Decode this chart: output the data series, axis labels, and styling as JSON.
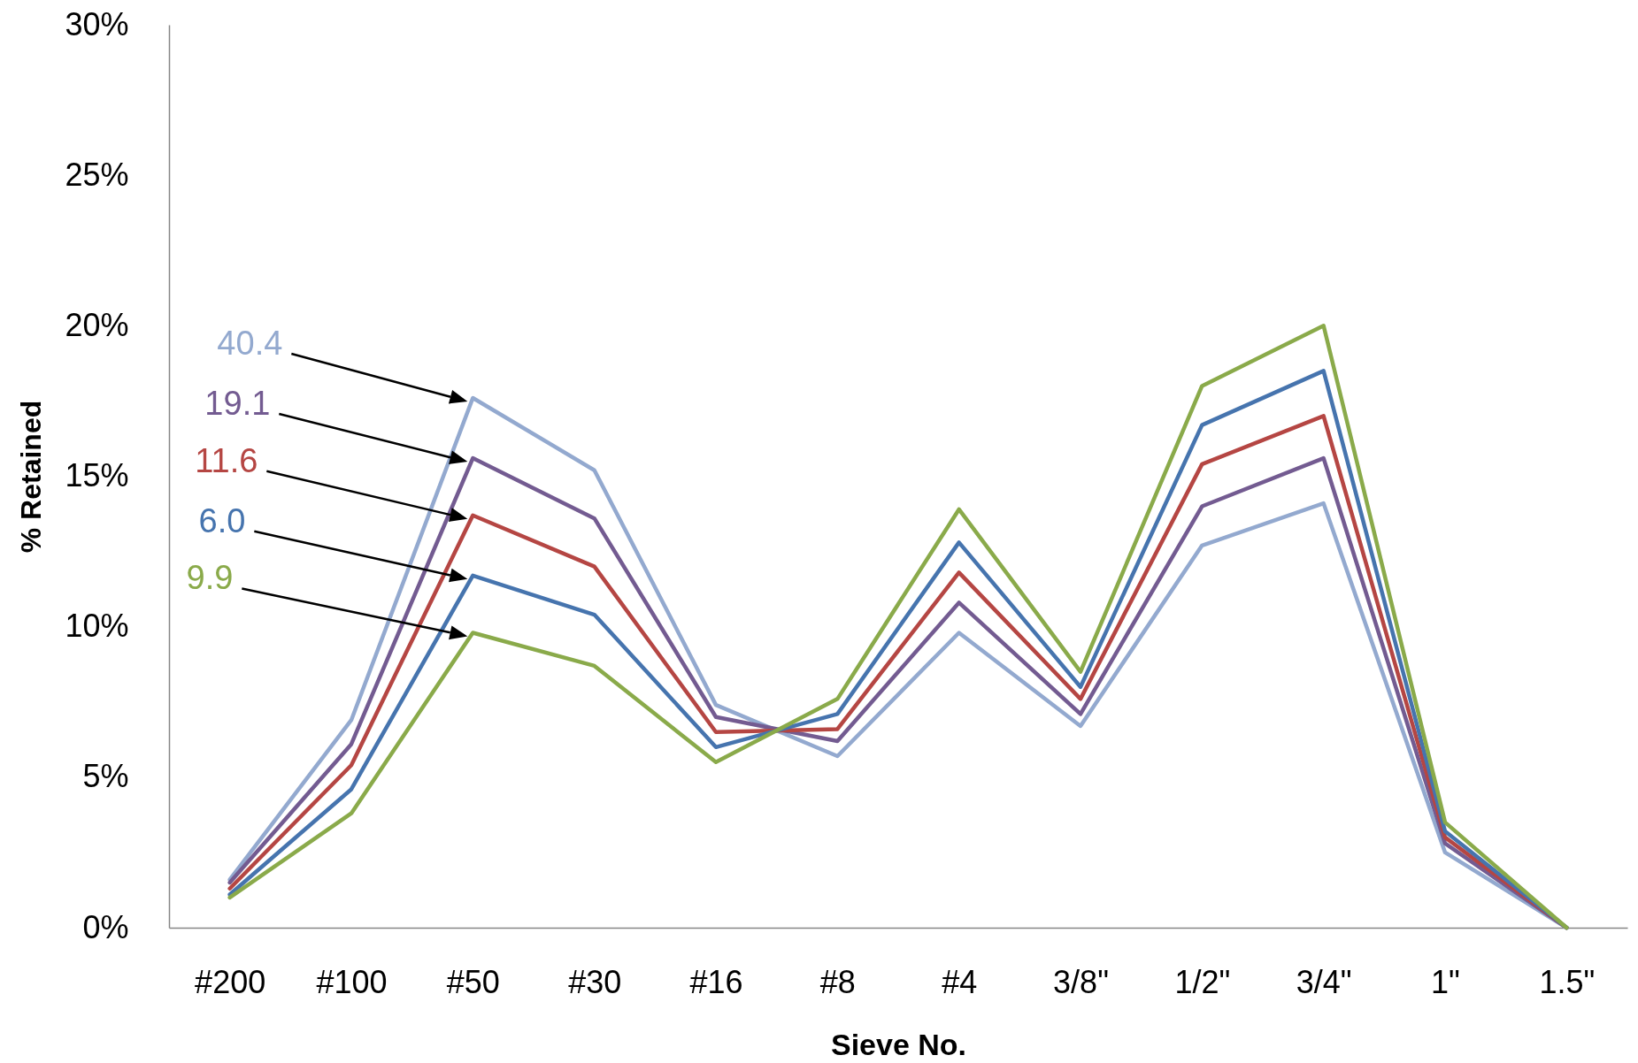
{
  "chart_data": {
    "type": "line",
    "xlabel": "Sieve No.",
    "ylabel": "% Retained",
    "categories": [
      "#200",
      "#100",
      "#50",
      "#30",
      "#16",
      "#8",
      "#4",
      "3/8\"",
      "1/2\"",
      "3/4\"",
      "1\"",
      "1.5\""
    ],
    "ylim": [
      0,
      30
    ],
    "yticks": [
      {
        "value": 0,
        "label": "0%"
      },
      {
        "value": 5,
        "label": "5%"
      },
      {
        "value": 10,
        "label": "10%"
      },
      {
        "value": 15,
        "label": "15%"
      },
      {
        "value": 20,
        "label": "20%"
      },
      {
        "value": 25,
        "label": "25%"
      },
      {
        "value": 30,
        "label": "30%"
      }
    ],
    "grid": false,
    "legend": false,
    "marker": "none",
    "line_style": "solid",
    "series": [
      {
        "name": "40.4",
        "color": "#93a9cf",
        "values": [
          1.6,
          6.9,
          17.6,
          15.2,
          7.4,
          5.7,
          9.8,
          6.7,
          12.7,
          14.1,
          2.5,
          0
        ]
      },
      {
        "name": "19.1",
        "color": "#735b91",
        "values": [
          1.5,
          6.1,
          15.6,
          13.6,
          7.0,
          6.2,
          10.8,
          7.1,
          14.0,
          15.6,
          2.8,
          0
        ]
      },
      {
        "name": "11.6",
        "color": "#b54643",
        "values": [
          1.3,
          5.4,
          13.7,
          12.0,
          6.5,
          6.6,
          11.8,
          7.6,
          15.4,
          17.0,
          3.0,
          0
        ]
      },
      {
        "name": "6.0",
        "color": "#4674ae",
        "values": [
          1.1,
          4.6,
          11.7,
          10.4,
          6.0,
          7.1,
          12.8,
          8.0,
          16.7,
          18.5,
          3.2,
          0
        ]
      },
      {
        "name": "9.9",
        "color": "#8aaa4a",
        "values": [
          1.0,
          3.8,
          9.8,
          8.7,
          5.5,
          7.6,
          13.9,
          8.5,
          18.0,
          20.0,
          3.5,
          0
        ]
      }
    ]
  }
}
